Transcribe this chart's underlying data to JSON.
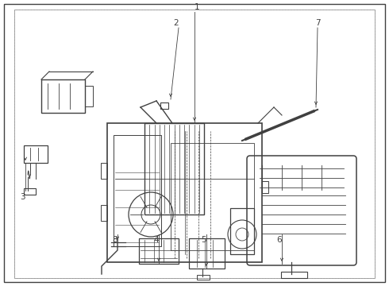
{
  "bg_color": "#ffffff",
  "line_color": "#404040",
  "fig_width": 4.9,
  "fig_height": 3.6,
  "dpi": 100
}
